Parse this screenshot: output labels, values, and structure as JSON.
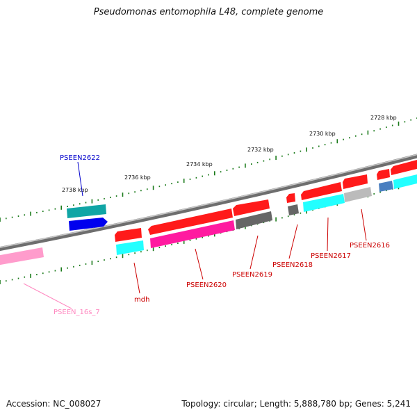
{
  "title": "Pseudomonas entomophila L48, complete genome",
  "footer": {
    "accession_label": "Accession:",
    "accession": "NC_008027",
    "topology_label": "Topology:",
    "topology": "circular",
    "length_label": "Length:",
    "length": "5,888,780 bp",
    "genes_label": "Genes:",
    "genes": "5,241"
  },
  "colors": {
    "backbone": "#7a7a7a",
    "scale_ticks": "#1a7a1a",
    "red": "#ff1a1a",
    "cyan": "#22ffff",
    "teal": "#10a5a5",
    "blue": "#0000ee",
    "magenta": "#ff1aa0",
    "gray": "#666666",
    "lightgray": "#bbbbbb",
    "steelblue": "#4a7fc0",
    "pink": "#ff9ccc"
  },
  "scale_labels": [
    "2738 kbp",
    "2736 kbp",
    "2734 kbp",
    "2732 kbp",
    "2730 kbp",
    "2728 kbp"
  ],
  "gene_labels": [
    {
      "text": "PSEEN2622",
      "color": "#0000cc"
    },
    {
      "text": "mdh",
      "color": "#cc0000"
    },
    {
      "text": "PSEEN2620",
      "color": "#cc0000"
    },
    {
      "text": "PSEEN2619",
      "color": "#cc0000"
    },
    {
      "text": "PSEEN2618",
      "color": "#cc0000"
    },
    {
      "text": "PSEEN2617",
      "color": "#cc0000"
    },
    {
      "text": "PSEEN2616",
      "color": "#cc0000"
    },
    {
      "text": "PSEEN_16s_7",
      "color": "#ff88c0"
    }
  ]
}
